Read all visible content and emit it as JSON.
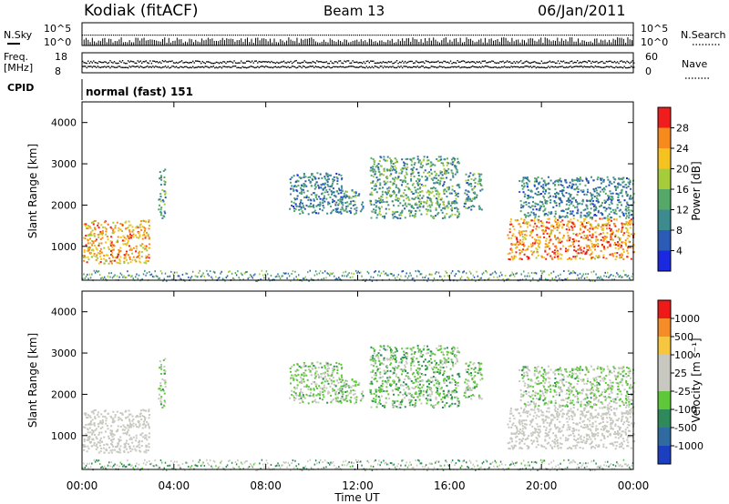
{
  "header": {
    "station": "Kodiak (fitACF)",
    "beam": "Beam 13",
    "date": "06/Jan/2011"
  },
  "noise_panel": {
    "left_label": "N.Sky",
    "right_label": "N.Search",
    "tick_top": "10^5",
    "tick_bottom": "10^0"
  },
  "freq_panel": {
    "left_label_1": "Freq.",
    "left_label_2": "[MHz]",
    "right_label": "Nave",
    "left_tick_top": "18",
    "left_tick_bottom": "8",
    "right_tick_top": "60",
    "right_tick_bottom": "0"
  },
  "cpid": {
    "label": "CPID",
    "value": "normal (fast) 151"
  },
  "x_axis": {
    "label": "Time UT",
    "ticks": [
      "00:00",
      "04:00",
      "08:00",
      "12:00",
      "16:00",
      "20:00",
      "00:00"
    ]
  },
  "power_panel": {
    "ylabel": "Slant Range [km]",
    "y_ticks": [
      "1000",
      "2000",
      "3000",
      "4000"
    ],
    "colorbar_label": "Power [dB]",
    "colorbar_ticks": [
      "4",
      "8",
      "12",
      "16",
      "20",
      "24",
      "28"
    ],
    "colors": [
      "#1a28e0",
      "#2b5bb5",
      "#3d8a8f",
      "#56a868",
      "#a6cc3c",
      "#f4c320",
      "#f68a1c",
      "#ef1d1d"
    ]
  },
  "velocity_panel": {
    "ylabel": "Slant Range [km]",
    "y_ticks": [
      "1000",
      "2000",
      "3000",
      "4000"
    ],
    "colorbar_label": "Velocity [m s⁻¹]",
    "colorbar_ticks": [
      "1000",
      "500",
      "100",
      "25",
      "-25",
      "-100",
      "-500",
      "-1000"
    ],
    "colors": [
      "#1c3fc0",
      "#2f6aa0",
      "#2e8a5a",
      "#5fc83a",
      "#c8c8c0",
      "#c8c8c0",
      "#f6c640",
      "#f48c28",
      "#ee1a1a"
    ]
  },
  "chart_data": {
    "type": "heatmap",
    "x_range_hours": [
      0,
      24
    ],
    "y_range_km": [
      180,
      4500
    ],
    "series": [
      {
        "name": "Power [dB]",
        "color_scale": "dB",
        "range": [
          0,
          30
        ]
      },
      {
        "name": "Velocity [m s⁻¹]",
        "color_scale": "m/s",
        "range": [
          -1000,
          1000
        ]
      }
    ],
    "echo_regions": [
      {
        "t0": 0.0,
        "t1": 2.9,
        "r0": 600,
        "r1": 1650,
        "power": 22,
        "velocity": -40
      },
      {
        "t0": 3.3,
        "t1": 3.6,
        "r0": 1700,
        "r1": 2900,
        "power": 12,
        "velocity": 0
      },
      {
        "t0": 9.0,
        "t1": 11.3,
        "r0": 1800,
        "r1": 2800,
        "power": 9,
        "velocity": 0
      },
      {
        "t0": 11.0,
        "t1": 12.2,
        "r0": 1800,
        "r1": 2400,
        "power": 10,
        "velocity": 0
      },
      {
        "t0": 12.5,
        "t1": 16.4,
        "r0": 1700,
        "r1": 3200,
        "power": 12,
        "velocity": 10
      },
      {
        "t0": 16.6,
        "t1": 17.4,
        "r0": 1900,
        "r1": 2800,
        "power": 11,
        "velocity": 0
      },
      {
        "t0": 18.5,
        "t1": 24.0,
        "r0": 700,
        "r1": 1700,
        "power": 24,
        "velocity": -30
      },
      {
        "t0": 19.0,
        "t1": 24.0,
        "r0": 1700,
        "r1": 2700,
        "power": 9,
        "velocity": 0
      }
    ]
  }
}
